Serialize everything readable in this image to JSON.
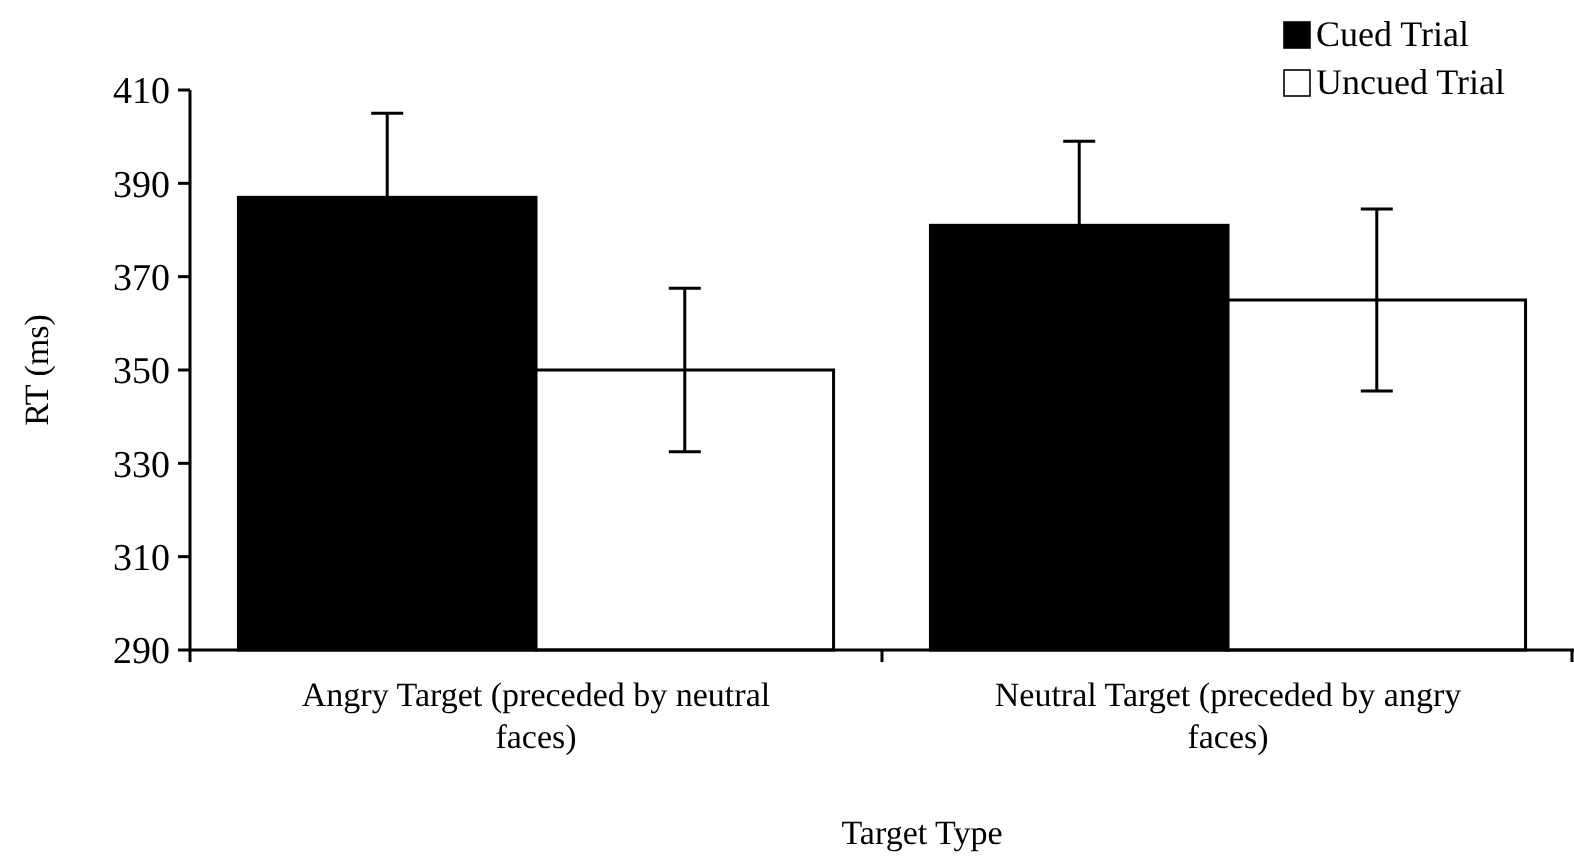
{
  "chart_data": {
    "type": "bar",
    "xlabel": "Target Type",
    "ylabel": "RT (ms)",
    "categories": [
      "Angry Target (preceded by neutral faces)",
      "Neutral Target (preceded by angry faces)"
    ],
    "series": [
      {
        "name": "Cued Trial",
        "color": "#000000",
        "values": [
          387,
          381
        ],
        "errors": [
          18,
          18
        ]
      },
      {
        "name": "Uncued Trial",
        "color": "#ffffff",
        "values": [
          350,
          365
        ],
        "errors": [
          17.5,
          19.5
        ]
      }
    ],
    "ylim": [
      290,
      410
    ],
    "yticks": [
      290,
      310,
      330,
      350,
      370,
      390,
      410
    ],
    "grid": false,
    "legend": "top right"
  }
}
